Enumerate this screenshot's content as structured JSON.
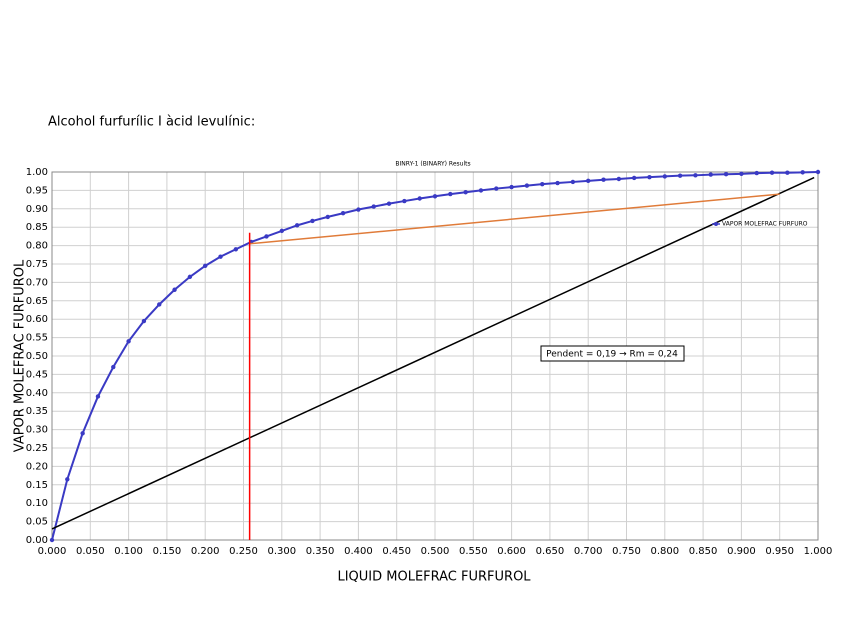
{
  "heading": "Alcohol furfurílic I àcid levulínic:",
  "chart_data": {
    "type": "line",
    "title": "BINRY-1 (BINARY) Results",
    "x_label": "LIQUID MOLEFRAC FURFUROL",
    "y_label": "VAPOR MOLEFRAC FURFUROL",
    "annotation": "Pendent = 0,19 → Rm = 0,24",
    "grid": true,
    "legend": "upper right",
    "xlim": [
      0,
      1
    ],
    "ylim": [
      0,
      1
    ],
    "xticks": [
      {
        "value": 0,
        "label": "0.000"
      },
      {
        "value": 0.05,
        "label": "0.050"
      },
      {
        "value": 0.1,
        "label": "0.100"
      },
      {
        "value": 0.15,
        "label": "0.150"
      },
      {
        "value": 0.2,
        "label": "0.200"
      },
      {
        "value": 0.25,
        "label": "0.250"
      },
      {
        "value": 0.3,
        "label": "0.300"
      },
      {
        "value": 0.35,
        "label": "0.350"
      },
      {
        "value": 0.4,
        "label": "0.400"
      },
      {
        "value": 0.45,
        "label": "0.450"
      },
      {
        "value": 0.5,
        "label": "0.500"
      },
      {
        "value": 0.55,
        "label": "0.550"
      },
      {
        "value": 0.6,
        "label": "0.600"
      },
      {
        "value": 0.65,
        "label": "0.650"
      },
      {
        "value": 0.7,
        "label": "0.700"
      },
      {
        "value": 0.75,
        "label": "0.750"
      },
      {
        "value": 0.8,
        "label": "0.800"
      },
      {
        "value": 0.85,
        "label": "0.850"
      },
      {
        "value": 0.9,
        "label": "0.900"
      },
      {
        "value": 0.95,
        "label": "0.950"
      },
      {
        "value": 1,
        "label": "1.000"
      }
    ],
    "yticks": [
      {
        "value": 0,
        "label": "0.00"
      },
      {
        "value": 0.05,
        "label": "0.05"
      },
      {
        "value": 0.1,
        "label": "0.10"
      },
      {
        "value": 0.15,
        "label": "0.15"
      },
      {
        "value": 0.2,
        "label": "0.20"
      },
      {
        "value": 0.25,
        "label": "0.25"
      },
      {
        "value": 0.3,
        "label": "0.30"
      },
      {
        "value": 0.35,
        "label": "0.35"
      },
      {
        "value": 0.4,
        "label": "0.40"
      },
      {
        "value": 0.45,
        "label": "0.45"
      },
      {
        "value": 0.5,
        "label": "0.50"
      },
      {
        "value": 0.55,
        "label": "0.55"
      },
      {
        "value": 0.6,
        "label": "0.60"
      },
      {
        "value": 0.65,
        "label": "0.65"
      },
      {
        "value": 0.7,
        "label": "0.70"
      },
      {
        "value": 0.75,
        "label": "0.75"
      },
      {
        "value": 0.8,
        "label": "0.80"
      },
      {
        "value": 0.85,
        "label": "0.85"
      },
      {
        "value": 0.9,
        "label": "0.90"
      },
      {
        "value": 0.95,
        "label": "0.95"
      },
      {
        "value": 1,
        "label": "1.00"
      }
    ],
    "series": [
      {
        "name": "VAPOR MOLEFRAC FURFURO",
        "color": "#3a3ac4",
        "markers": true,
        "x": [
          0,
          0.02,
          0.04,
          0.06,
          0.08,
          0.1,
          0.12,
          0.14,
          0.16,
          0.18,
          0.2,
          0.22,
          0.24,
          0.26,
          0.28,
          0.3,
          0.32,
          0.34,
          0.36,
          0.38,
          0.4,
          0.42,
          0.44,
          0.46,
          0.48,
          0.5,
          0.52,
          0.54,
          0.56,
          0.58,
          0.6,
          0.62,
          0.64,
          0.66,
          0.68,
          0.7,
          0.72,
          0.74,
          0.76,
          0.78,
          0.8,
          0.82,
          0.84,
          0.86,
          0.88,
          0.9,
          0.92,
          0.94,
          0.96,
          0.98,
          1
        ],
        "values": [
          0,
          0.165,
          0.29,
          0.39,
          0.47,
          0.54,
          0.595,
          0.64,
          0.68,
          0.715,
          0.745,
          0.77,
          0.79,
          0.81,
          0.825,
          0.84,
          0.855,
          0.867,
          0.878,
          0.888,
          0.898,
          0.906,
          0.914,
          0.921,
          0.928,
          0.934,
          0.94,
          0.945,
          0.95,
          0.955,
          0.959,
          0.963,
          0.967,
          0.97,
          0.973,
          0.976,
          0.979,
          0.981,
          0.984,
          0.986,
          0.988,
          0.99,
          0.991,
          0.993,
          0.994,
          0.995,
          0.997,
          0.998,
          0.998,
          0.999,
          1
        ]
      },
      {
        "color": "#000000",
        "x": [
          0,
          0.995
        ],
        "values": [
          0.03,
          0.985
        ]
      },
      {
        "color": "#e07b39",
        "x": [
          0.258,
          0.95
        ],
        "values": [
          0.805,
          0.94
        ]
      },
      {
        "color": "#ff0000",
        "x": [
          0.258,
          0.258
        ],
        "values": [
          0,
          0.835
        ]
      }
    ]
  }
}
